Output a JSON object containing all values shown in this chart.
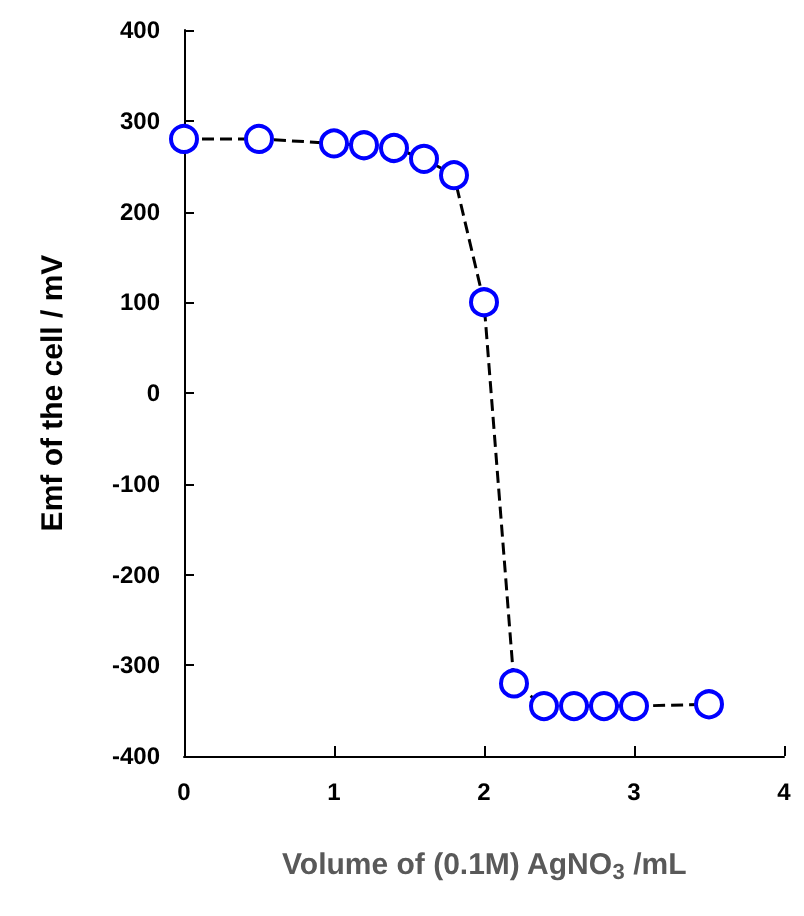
{
  "chart_data": {
    "type": "line",
    "xlabel": "Volume of (0.1M) AgNO$_{3}$ /mL",
    "ylabel": "Emf of the cell / mV",
    "x": [
      0,
      0.5,
      1,
      1.2,
      1.4,
      1.6,
      1.8,
      2.0,
      2.2,
      2.4,
      2.6,
      2.8,
      3.0,
      3.5
    ],
    "series": [
      {
        "color": "#0000ff",
        "values": [
          280,
          280,
          275,
          273,
          270,
          258,
          240,
          100,
          -320,
          -345,
          -345,
          -345,
          -345,
          -343
        ]
      }
    ],
    "xlim": [
      0,
      4
    ],
    "xticks": [
      0,
      1,
      2,
      3,
      4
    ],
    "ylim": [
      -400,
      400
    ],
    "yticks": [
      -400,
      -300,
      -200,
      -100,
      0,
      100,
      200,
      300,
      400
    ],
    "grid": false,
    "marker": "circle",
    "line_style": "dashed"
  }
}
